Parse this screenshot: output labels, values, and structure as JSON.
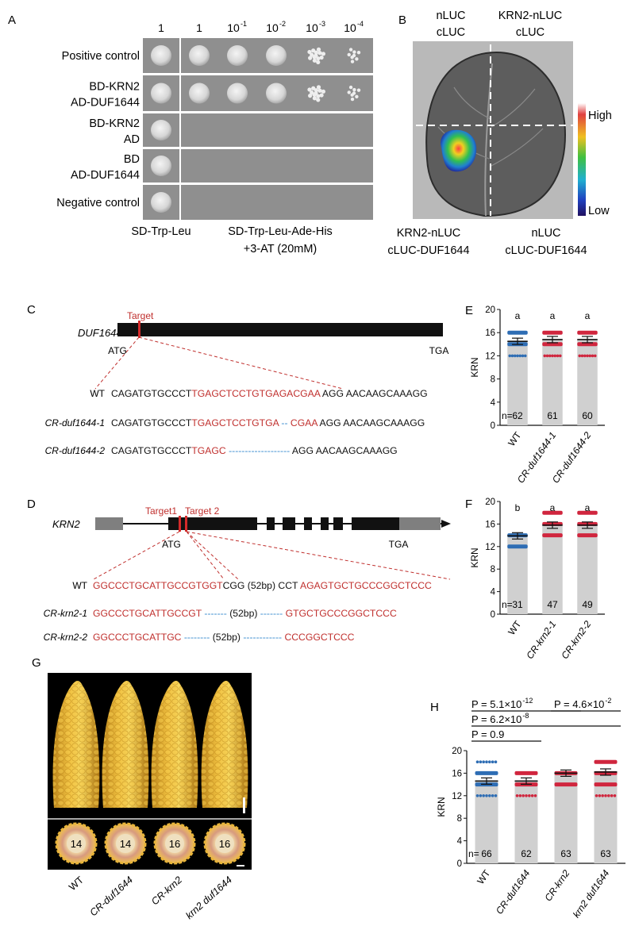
{
  "panel_letters": {
    "A": "A",
    "B": "B",
    "C": "C",
    "D": "D",
    "E": "E",
    "F": "F",
    "G": "G",
    "H": "H"
  },
  "panelA": {
    "columns": [
      "1",
      "1",
      "10",
      "10",
      "10",
      "10"
    ],
    "exponents": [
      "",
      "",
      "-1",
      "-2",
      "-3",
      "-4"
    ],
    "rows": [
      {
        "lines": [
          "Positive control"
        ],
        "growth": [
          1,
          1,
          1,
          1,
          0.6,
          0.3
        ]
      },
      {
        "lines": [
          "BD-KRN2",
          "AD-DUF1644"
        ],
        "growth": [
          1,
          1,
          1,
          1,
          0.6,
          0.3
        ]
      },
      {
        "lines": [
          "BD-KRN2",
          "AD"
        ],
        "growth": [
          1,
          0,
          0,
          0,
          0,
          0
        ]
      },
      {
        "lines": [
          "BD",
          "AD-DUF1644"
        ],
        "growth": [
          1,
          0,
          0,
          0,
          0,
          0
        ]
      },
      {
        "lines": [
          "Negative control"
        ],
        "growth": [
          1,
          0,
          0,
          0,
          0,
          0
        ]
      }
    ],
    "medium_left": "SD-Trp-Leu",
    "medium_right_1": "SD-Trp-Leu-Ade-His",
    "medium_right_2": "+3-AT (20mM)"
  },
  "panelB": {
    "top_left": [
      "nLUC",
      "cLUC"
    ],
    "top_right": [
      "KRN2-nLUC",
      "cLUC"
    ],
    "bottom_left": [
      "KRN2-nLUC",
      "cLUC-DUF1644"
    ],
    "bottom_right": [
      "nLUC",
      "cLUC-DUF1644"
    ],
    "scale_high": "High",
    "scale_low": "Low"
  },
  "panelC": {
    "gene": "DUF1644",
    "target": "Target",
    "start": "ATG",
    "stop": "TGA",
    "sequences": [
      {
        "label": "WT",
        "italic": false,
        "parts": [
          [
            "CAGATGTGCCCT",
            "k"
          ],
          [
            "TGAGCTCCTGTGAGACGAA",
            "r"
          ],
          [
            " AGG AACAAGCAAAGG",
            "k"
          ]
        ]
      },
      {
        "label": "CR-duf1644-1",
        "italic": true,
        "parts": [
          [
            "CAGATGTGCCCT",
            "k"
          ],
          [
            "TGAGCTCCTGTGA",
            "r"
          ],
          [
            " -- ",
            "b"
          ],
          [
            "CGAA",
            "r"
          ],
          [
            " AGG AACAAGCAAAGG",
            "k"
          ]
        ]
      },
      {
        "label": "CR-duf1644-2",
        "italic": true,
        "parts": [
          [
            "CAGATGTGCCCT",
            "k"
          ],
          [
            "TGAGC",
            "r"
          ],
          [
            " ------------------- ",
            "b"
          ],
          [
            "AGG AACAAGCAAAGG",
            "k"
          ]
        ]
      }
    ]
  },
  "panelD": {
    "gene": "KRN2",
    "target1": "Target1",
    "target2": "Target 2",
    "start": "ATG",
    "stop": "TGA",
    "sequences": [
      {
        "label": "WT",
        "italic": false,
        "parts": [
          [
            "GGCCCTGCATTGCCGTGGT",
            "r"
          ],
          [
            "CGG (52bp) CCT ",
            "k"
          ],
          [
            "AGAGTGCTGCCCGGCTCCC",
            "r"
          ]
        ]
      },
      {
        "label": "CR-krn2-1",
        "italic": true,
        "parts": [
          [
            "GGCCCTGCATTGCCGT",
            "r"
          ],
          [
            " ------- ",
            "b"
          ],
          [
            "(52bp)",
            "k"
          ],
          [
            " ------- ",
            "b"
          ],
          [
            "GTGCTGCCCGGCTCCC",
            "r"
          ]
        ]
      },
      {
        "label": "CR-krn2-2",
        "italic": true,
        "parts": [
          [
            "GGCCCTGCATTGC",
            "r"
          ],
          [
            " -------- ",
            "b"
          ],
          [
            "(52bp)",
            "k"
          ],
          [
            " ------------ ",
            "b"
          ],
          [
            "CCCGGCTCCC",
            "r"
          ]
        ]
      }
    ]
  },
  "panelG": {
    "kernel_rows": [
      "14",
      "14",
      "16",
      "16"
    ],
    "labels": [
      "WT",
      "CR-duf1644",
      "CR-krn2",
      "krn2 duf1644"
    ]
  },
  "colors": {
    "wt": "#2e6db4",
    "mutant": "#d0263e",
    "bar": "#d0d0d0",
    "red_text": "#c0302e",
    "blue_dash": "#3f8fd0"
  },
  "chart_data": [
    {
      "type": "bar",
      "panel": "E",
      "categories": [
        "WT",
        "CR-duf1644-1",
        "CR-duf1644-2"
      ],
      "values": [
        14.5,
        14.8,
        14.8
      ],
      "n": [
        "62",
        "61",
        "60"
      ],
      "n_prefix": "n=",
      "letters": [
        "a",
        "a",
        "a"
      ],
      "ylabel": "KRN",
      "ylim": [
        0,
        20
      ],
      "yticks": [
        "0",
        "4",
        "8",
        "12",
        "16",
        "20"
      ],
      "point_levels": [
        [
          16,
          14,
          12
        ],
        [
          16,
          14,
          12
        ],
        [
          16,
          14,
          12
        ]
      ]
    },
    {
      "type": "bar",
      "panel": "F",
      "categories": [
        "WT",
        "CR-krn2-1",
        "CR-krn2-2"
      ],
      "values": [
        13.9,
        15.8,
        15.8
      ],
      "n": [
        "31",
        "47",
        "49"
      ],
      "n_prefix": "n=",
      "letters": [
        "b",
        "a",
        "a"
      ],
      "ylabel": "KRN",
      "ylim": [
        0,
        20
      ],
      "yticks": [
        "0",
        "4",
        "8",
        "12",
        "16",
        "20"
      ],
      "point_levels": [
        [
          14,
          12
        ],
        [
          18,
          16,
          14
        ],
        [
          18,
          16,
          14
        ]
      ]
    },
    {
      "type": "bar",
      "panel": "H",
      "categories": [
        "WT",
        "CR-duf1644",
        "CR-krn2",
        "krn2 duf1644"
      ],
      "values": [
        14.6,
        14.6,
        16.0,
        16.2
      ],
      "n": [
        "66",
        "62",
        "63",
        "63"
      ],
      "n_prefix": "n=",
      "ylabel": "KRN",
      "ylim": [
        0,
        20
      ],
      "yticks": [
        "0",
        "4",
        "8",
        "12",
        "16",
        "20"
      ],
      "point_levels": [
        [
          18,
          16,
          14,
          12
        ],
        [
          16,
          14,
          12
        ],
        [
          16,
          14
        ],
        [
          18,
          16,
          14,
          12
        ]
      ],
      "p_values": [
        {
          "text": "P = 5.1×10",
          "exp": "-12",
          "from": 0,
          "to": 2
        },
        {
          "text": "P = 4.6×10",
          "exp": "-2",
          "from": 2,
          "to": 3
        },
        {
          "text": "P = 6.2×10",
          "exp": "-8",
          "from": 0,
          "to": 3
        },
        {
          "text": "P = 0.9",
          "exp": "",
          "from": 0,
          "to": 1
        }
      ]
    }
  ]
}
